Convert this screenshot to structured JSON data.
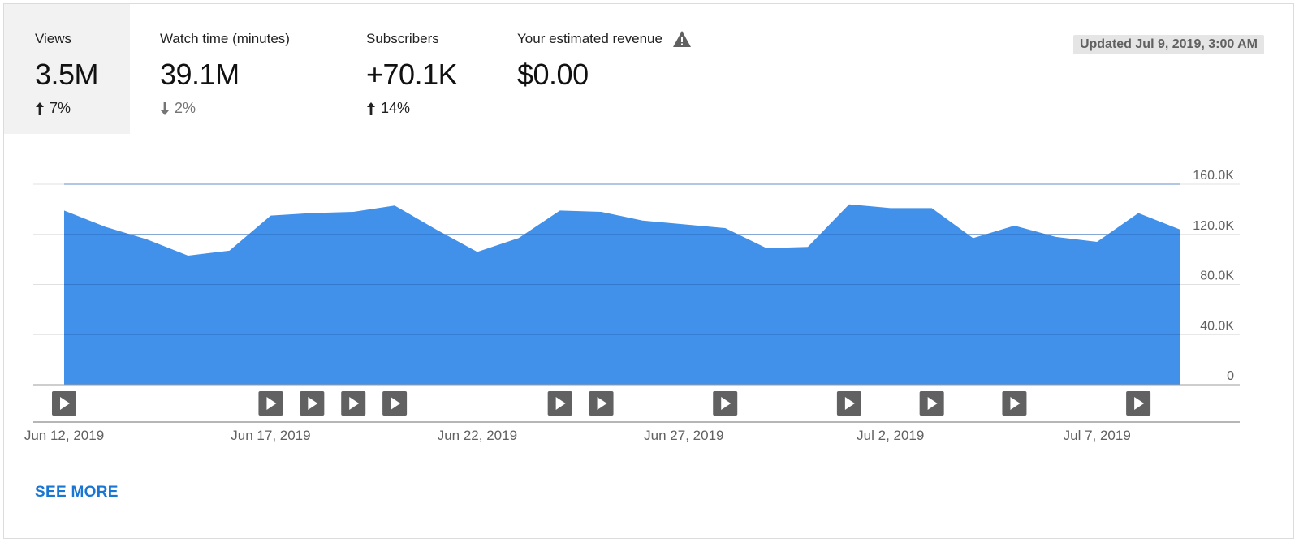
{
  "metrics": [
    {
      "label": "Views",
      "value": "3.5M",
      "delta": "7%",
      "direction": "up",
      "selected": true
    },
    {
      "label": "Watch time (minutes)",
      "value": "39.1M",
      "delta": "2%",
      "direction": "down",
      "selected": false
    },
    {
      "label": "Subscribers",
      "value": "+70.1K",
      "delta": "14%",
      "direction": "up",
      "selected": false
    },
    {
      "label": "Your estimated revenue",
      "value": "$0.00",
      "delta": "",
      "direction": "none",
      "selected": false,
      "icon": "warning-icon"
    }
  ],
  "updated_text": "Updated Jul 9, 2019, 3:00 AM",
  "see_more_label": "SEE MORE",
  "colors": {
    "area": "#4190ea",
    "link": "#1976d2",
    "marker": "#616161"
  },
  "chart_data": {
    "type": "area",
    "x": [
      "Jun 12",
      "Jun 13",
      "Jun 14",
      "Jun 15",
      "Jun 16",
      "Jun 17",
      "Jun 18",
      "Jun 19",
      "Jun 20",
      "Jun 21",
      "Jun 22",
      "Jun 23",
      "Jun 24",
      "Jun 25",
      "Jun 26",
      "Jun 27",
      "Jun 28",
      "Jun 29",
      "Jun 30",
      "Jul 1",
      "Jul 2",
      "Jul 3",
      "Jul 4",
      "Jul 5",
      "Jul 6",
      "Jul 7",
      "Jul 8",
      "Jul 9"
    ],
    "values": [
      139000,
      126000,
      116000,
      103000,
      107000,
      135000,
      137000,
      138000,
      143000,
      124000,
      106000,
      117000,
      139000,
      138000,
      131000,
      128000,
      125000,
      109000,
      110000,
      144000,
      141000,
      141000,
      117000,
      127000,
      118000,
      114000,
      137000,
      124000
    ],
    "xtick_labels": [
      "Jun 12, 2019",
      "Jun 17, 2019",
      "Jun 22, 2019",
      "Jun 27, 2019",
      "Jul 2, 2019",
      "Jul 7, 2019"
    ],
    "xtick_index": [
      0,
      5,
      10,
      15,
      20,
      25
    ],
    "ytick_labels": [
      "160.0K",
      "120.0K",
      "80.0K",
      "40.0K",
      "0"
    ],
    "ytick_values": [
      160000,
      120000,
      80000,
      40000,
      0
    ],
    "ylim": [
      0,
      160000
    ],
    "video_markers": [
      "Jun 12",
      "Jun 17",
      "Jun 18",
      "Jun 19",
      "Jun 20",
      "Jun 24",
      "Jun 25",
      "Jun 28",
      "Jul 1",
      "Jul 3",
      "Jul 5",
      "Jul 8"
    ],
    "grid": true
  }
}
